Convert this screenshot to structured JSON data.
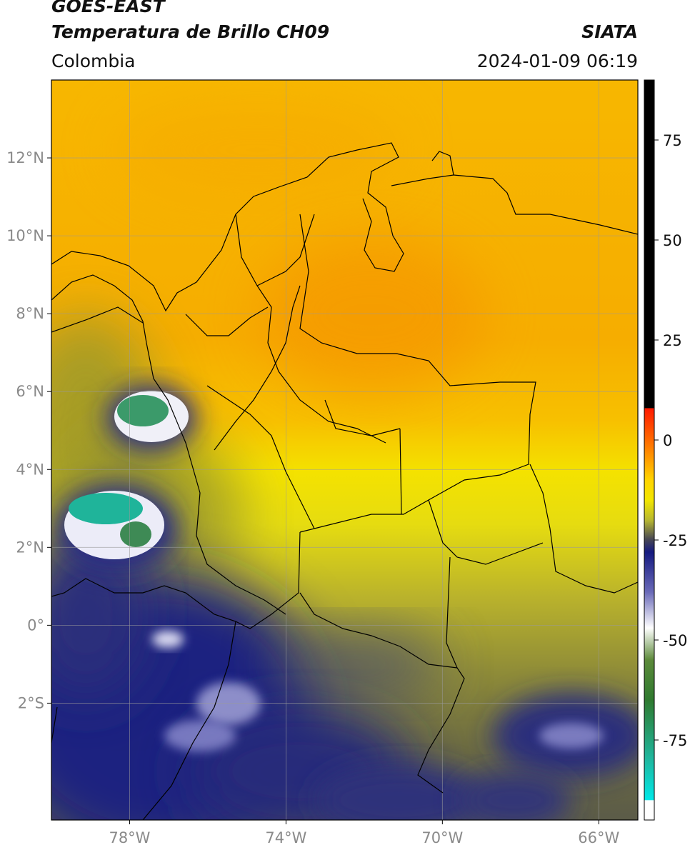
{
  "header": {
    "satellite": "GOES-EAST",
    "product": "Temperatura de Brillo CH09",
    "source": "SIATA",
    "region": "Colombia",
    "datetime": "2024-01-09 06:19"
  },
  "map": {
    "lon_range": [
      -80,
      -65
    ],
    "lat_range": [
      -5,
      14
    ],
    "lat_ticks": [
      {
        "value": 12,
        "label": "12°N"
      },
      {
        "value": 10,
        "label": "10°N"
      },
      {
        "value": 8,
        "label": "8°N"
      },
      {
        "value": 6,
        "label": "6°N"
      },
      {
        "value": 4,
        "label": "4°N"
      },
      {
        "value": 2,
        "label": "2°N"
      },
      {
        "value": 0,
        "label": "0°"
      },
      {
        "value": -2,
        "label": "2°S"
      }
    ],
    "lon_ticks": [
      {
        "value": -78,
        "label": "78°W"
      },
      {
        "value": -74,
        "label": "74°W"
      },
      {
        "value": -70,
        "label": "70°W"
      },
      {
        "value": -66,
        "label": "66°W"
      }
    ],
    "colors": {
      "warm": "#f8b400",
      "cold": "#1a1f7a",
      "border": "#000000",
      "grid": "#9a9a9a"
    }
  },
  "colorbar": {
    "range": [
      -95,
      90
    ],
    "ticks": [
      {
        "value": 75,
        "label": "75"
      },
      {
        "value": 50,
        "label": "50"
      },
      {
        "value": 25,
        "label": "25"
      },
      {
        "value": 0,
        "label": "0"
      },
      {
        "value": -25,
        "label": "-25"
      },
      {
        "value": -50,
        "label": "-50"
      },
      {
        "value": -75,
        "label": "-75"
      }
    ],
    "stops": [
      {
        "value": 90,
        "color": "#000000"
      },
      {
        "value": 8,
        "color": "#000000"
      },
      {
        "value": 7.9,
        "color": "#ff1a00"
      },
      {
        "value": 0,
        "color": "#ff6a00"
      },
      {
        "value": -10,
        "color": "#ffd400"
      },
      {
        "value": -15,
        "color": "#f2e600"
      },
      {
        "value": -20,
        "color": "#b8b830"
      },
      {
        "value": -25,
        "color": "#444455"
      },
      {
        "value": -28,
        "color": "#151a80"
      },
      {
        "value": -38,
        "color": "#6a6ab8"
      },
      {
        "value": -47,
        "color": "#ffffff"
      },
      {
        "value": -55,
        "color": "#5c8a3a"
      },
      {
        "value": -65,
        "color": "#2f7a2f"
      },
      {
        "value": -80,
        "color": "#1fb8a0"
      },
      {
        "value": -90,
        "color": "#00e8e8"
      },
      {
        "value": -90.1,
        "color": "#ffffff"
      },
      {
        "value": -95,
        "color": "#ffffff"
      }
    ]
  }
}
